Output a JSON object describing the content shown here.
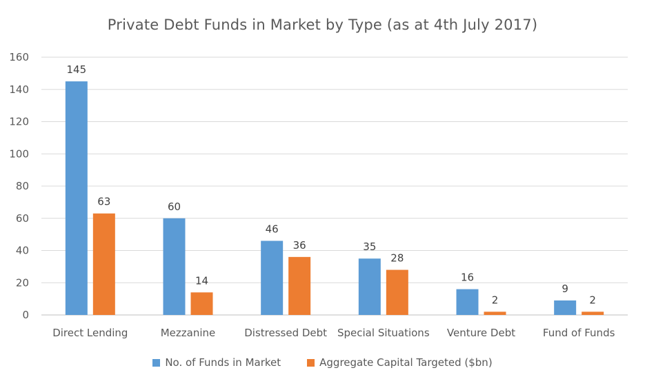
{
  "chart_data": {
    "type": "bar",
    "title": "Private Debt Funds in Market by Type (as at 4th July 2017)",
    "categories": [
      "Direct Lending",
      "Mezzanine",
      "Distressed Debt",
      "Special Situations",
      "Venture Debt",
      "Fund of Funds"
    ],
    "series": [
      {
        "name": "No. of Funds in Market",
        "color": "#5B9BD5",
        "values": [
          145,
          60,
          46,
          35,
          16,
          9
        ],
        "labels": [
          "145",
          "60",
          "46",
          "35",
          "16",
          "9"
        ]
      },
      {
        "name": "Aggregate Capital Targeted ($bn)",
        "color": "#ED7D31",
        "values": [
          63,
          14,
          36,
          28,
          2,
          2
        ],
        "labels": [
          "63",
          "14",
          "36",
          "28",
          "2",
          "2"
        ]
      }
    ],
    "ylim": [
      0,
      160
    ],
    "yticks": [
      "0",
      "20",
      "40",
      "60",
      "80",
      "100",
      "120",
      "140",
      "160"
    ],
    "grid": true,
    "legend_position": "bottom",
    "xlabel": "",
    "ylabel": ""
  }
}
